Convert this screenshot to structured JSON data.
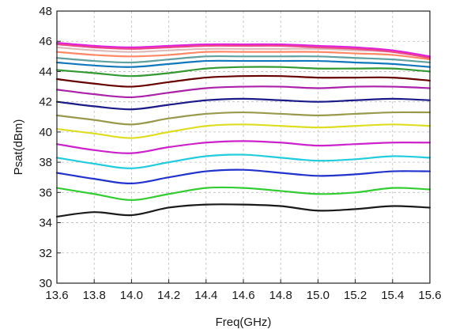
{
  "chart_data": {
    "type": "line",
    "xlabel": "Freq(GHz)",
    "ylabel": "Psat(dBm)",
    "xlim": [
      13.6,
      15.6
    ],
    "ylim": [
      30,
      48
    ],
    "grid": true,
    "x_ticks": [
      13.6,
      13.8,
      14.0,
      14.2,
      14.4,
      14.6,
      14.8,
      15.0,
      15.2,
      15.4,
      15.6
    ],
    "x_tick_labels": [
      "13.6",
      "13.8",
      "14.0",
      "14.2",
      "14.4",
      "14.6",
      "14.8",
      "15.0",
      "15.2",
      "15.4",
      "15.6"
    ],
    "y_ticks": [
      30,
      32,
      34,
      36,
      38,
      40,
      42,
      44,
      46,
      48
    ],
    "y_tick_labels": [
      "30",
      "32",
      "34",
      "36",
      "38",
      "40",
      "42",
      "44",
      "46",
      "48"
    ],
    "x": [
      13.6,
      13.8,
      14.0,
      14.2,
      14.4,
      14.6,
      14.8,
      15.0,
      15.2,
      15.4,
      15.6
    ],
    "series": [
      {
        "color": "#1a1a1a",
        "values": [
          34.4,
          34.7,
          34.5,
          35.0,
          35.2,
          35.2,
          35.1,
          34.8,
          34.9,
          35.1,
          35.0
        ]
      },
      {
        "color": "#33cc33",
        "values": [
          36.3,
          35.9,
          35.5,
          35.9,
          36.3,
          36.3,
          36.1,
          35.9,
          36.0,
          36.3,
          36.2
        ]
      },
      {
        "color": "#2233cc",
        "values": [
          37.3,
          36.9,
          36.6,
          37.0,
          37.4,
          37.5,
          37.3,
          37.1,
          37.2,
          37.4,
          37.4
        ]
      },
      {
        "color": "#22ccdd",
        "values": [
          38.3,
          37.9,
          37.6,
          38.0,
          38.4,
          38.5,
          38.3,
          38.1,
          38.2,
          38.4,
          38.3
        ]
      },
      {
        "color": "#cc22cc",
        "values": [
          39.2,
          38.8,
          38.6,
          39.0,
          39.3,
          39.4,
          39.3,
          39.1,
          39.2,
          39.3,
          39.3
        ]
      },
      {
        "color": "#dddd22",
        "values": [
          40.2,
          39.9,
          39.6,
          40.0,
          40.4,
          40.5,
          40.4,
          40.3,
          40.4,
          40.5,
          40.4
        ]
      },
      {
        "color": "#99994d",
        "values": [
          41.1,
          40.8,
          40.5,
          40.9,
          41.2,
          41.3,
          41.2,
          41.1,
          41.2,
          41.3,
          41.3
        ]
      },
      {
        "color": "#1a1a88",
        "values": [
          42.0,
          41.7,
          41.5,
          41.8,
          42.1,
          42.2,
          42.1,
          42.0,
          42.1,
          42.2,
          42.1
        ]
      },
      {
        "color": "#aa22aa",
        "values": [
          42.8,
          42.5,
          42.3,
          42.6,
          42.9,
          43.0,
          43.0,
          42.9,
          43.0,
          43.0,
          42.9
        ]
      },
      {
        "color": "#660000",
        "values": [
          43.5,
          43.2,
          43.0,
          43.3,
          43.6,
          43.7,
          43.7,
          43.6,
          43.6,
          43.6,
          43.4
        ]
      },
      {
        "color": "#339933",
        "values": [
          44.1,
          43.9,
          43.7,
          43.9,
          44.2,
          44.3,
          44.3,
          44.2,
          44.2,
          44.2,
          44.0
        ]
      },
      {
        "color": "#1177bb",
        "values": [
          44.6,
          44.4,
          44.3,
          44.5,
          44.7,
          44.7,
          44.7,
          44.7,
          44.6,
          44.5,
          44.3
        ]
      },
      {
        "color": "#5fa0a0",
        "values": [
          44.9,
          44.7,
          44.6,
          44.8,
          45.0,
          45.0,
          45.0,
          45.0,
          44.9,
          44.8,
          44.6
        ]
      },
      {
        "color": "#ff8866",
        "values": [
          45.3,
          45.1,
          45.0,
          45.1,
          45.3,
          45.3,
          45.3,
          45.3,
          45.2,
          45.1,
          44.8
        ]
      },
      {
        "color": "#ddbbbb",
        "values": [
          45.6,
          45.4,
          45.3,
          45.4,
          45.5,
          45.5,
          45.5,
          45.5,
          45.4,
          45.3,
          45.0
        ]
      },
      {
        "color": "#dd22dd",
        "values": [
          45.9,
          45.7,
          45.6,
          45.7,
          45.8,
          45.8,
          45.8,
          45.7,
          45.6,
          45.4,
          45.0
        ]
      },
      {
        "color": "#ee4488",
        "values": [
          45.8,
          45.6,
          45.5,
          45.6,
          45.7,
          45.7,
          45.7,
          45.6,
          45.5,
          45.3,
          44.9
        ]
      }
    ]
  }
}
